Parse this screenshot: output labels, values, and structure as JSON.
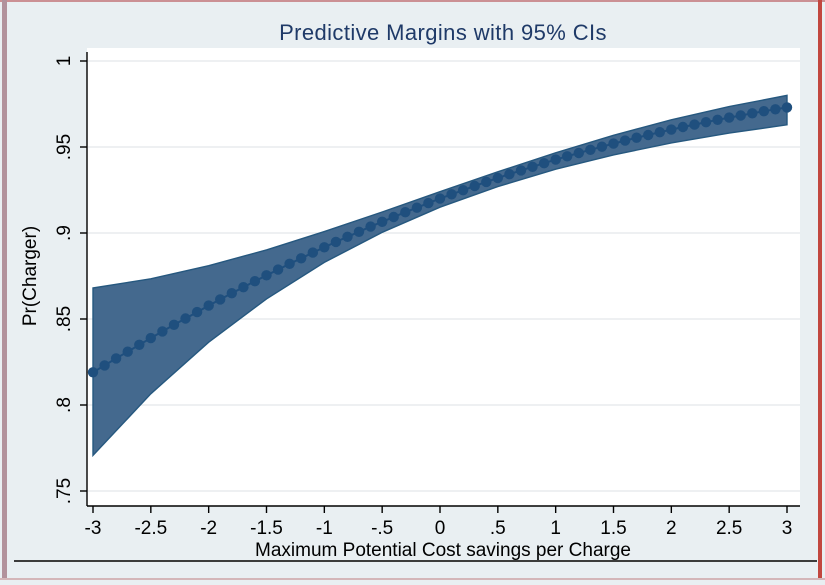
{
  "chart_data": {
    "type": "line",
    "title": "Predictive Margins with 95% CIs",
    "xlabel": "Maximum Potential Cost savings per Charge",
    "ylabel": "Pr(Charger)",
    "series_name": "Predictive margins",
    "ci_level": "95%",
    "xlim": [
      -3,
      3
    ],
    "ylim": [
      0.75,
      1
    ],
    "grid": "horizontal",
    "legend": "none",
    "x": [
      -3,
      -2.9,
      -2.8,
      -2.7,
      -2.6,
      -2.5,
      -2.4,
      -2.3,
      -2.2,
      -2.1,
      -2,
      -1.9,
      -1.8,
      -1.7,
      -1.6,
      -1.5,
      -1.4,
      -1.3,
      -1.2,
      -1.1,
      -1,
      -0.9,
      -0.8,
      -0.7,
      -0.6,
      -0.5,
      -0.4,
      -0.3,
      -0.2,
      -0.1,
      0,
      0.1,
      0.2,
      0.3,
      0.4,
      0.5,
      0.6,
      0.7,
      0.8,
      0.9,
      1,
      1.1,
      1.2,
      1.3,
      1.4,
      1.5,
      1.6,
      1.7,
      1.8,
      1.9,
      2,
      2.1,
      2.2,
      2.3,
      2.4,
      2.5,
      2.6,
      2.7,
      2.8,
      2.9,
      3
    ],
    "y": [
      0.819,
      0.823,
      0.8271,
      0.831,
      0.835,
      0.8389,
      0.8428,
      0.8466,
      0.8503,
      0.854,
      0.8578,
      0.8614,
      0.865,
      0.8685,
      0.872,
      0.8754,
      0.8787,
      0.8821,
      0.8853,
      0.8886,
      0.8917,
      0.8948,
      0.8978,
      0.9007,
      0.9037,
      0.9065,
      0.9093,
      0.9121,
      0.9147,
      0.9174,
      0.92,
      0.9225,
      0.9249,
      0.9273,
      0.9297,
      0.932,
      0.9342,
      0.9364,
      0.9385,
      0.9406,
      0.9427,
      0.9446,
      0.9465,
      0.9484,
      0.9502,
      0.952,
      0.9537,
      0.9554,
      0.957,
      0.9586,
      0.9601,
      0.9616,
      0.963,
      0.9644,
      0.9658,
      0.9671,
      0.9683,
      0.9696,
      0.9708,
      0.9719,
      0.973
    ],
    "ci": {
      "x": [
        -3,
        -2.5,
        -2,
        -1.5,
        -1,
        -0.5,
        0,
        0.5,
        1,
        1.5,
        2,
        2.5,
        3
      ],
      "upper": [
        0.868,
        0.8734,
        0.881,
        0.8902,
        0.9008,
        0.9122,
        0.924,
        0.9356,
        0.9466,
        0.9568,
        0.9658,
        0.9735,
        0.98
      ],
      "lower": [
        0.7707,
        0.8065,
        0.8365,
        0.8617,
        0.8829,
        0.9004,
        0.915,
        0.927,
        0.9371,
        0.9454,
        0.9524,
        0.9581,
        0.9629
      ]
    },
    "x_tick_labels": [
      "-3",
      "-2.5",
      "-2",
      "-1.5",
      "-1",
      "-.5",
      "0",
      ".5",
      "1",
      "1.5",
      "2",
      "2.5",
      "3"
    ],
    "x_tick_values": [
      -3,
      -2.5,
      -2,
      -1.5,
      -1,
      -0.5,
      0,
      0.5,
      1,
      1.5,
      2,
      2.5,
      3
    ],
    "y_tick_labels": [
      "1",
      ".95",
      ".9",
      ".85",
      ".8",
      ".75"
    ],
    "y_tick_values": [
      1,
      0.95,
      0.9,
      0.85,
      0.8,
      0.75
    ],
    "colors": {
      "band": "#44698e",
      "band_edge": "#26587f",
      "marker": "#1f4f7e",
      "title": "#1f3a68",
      "grid": "#e3e8eb",
      "axis": "#000000",
      "plot_bg": "#ffffff",
      "outer_bg": "#e9eff2"
    }
  }
}
